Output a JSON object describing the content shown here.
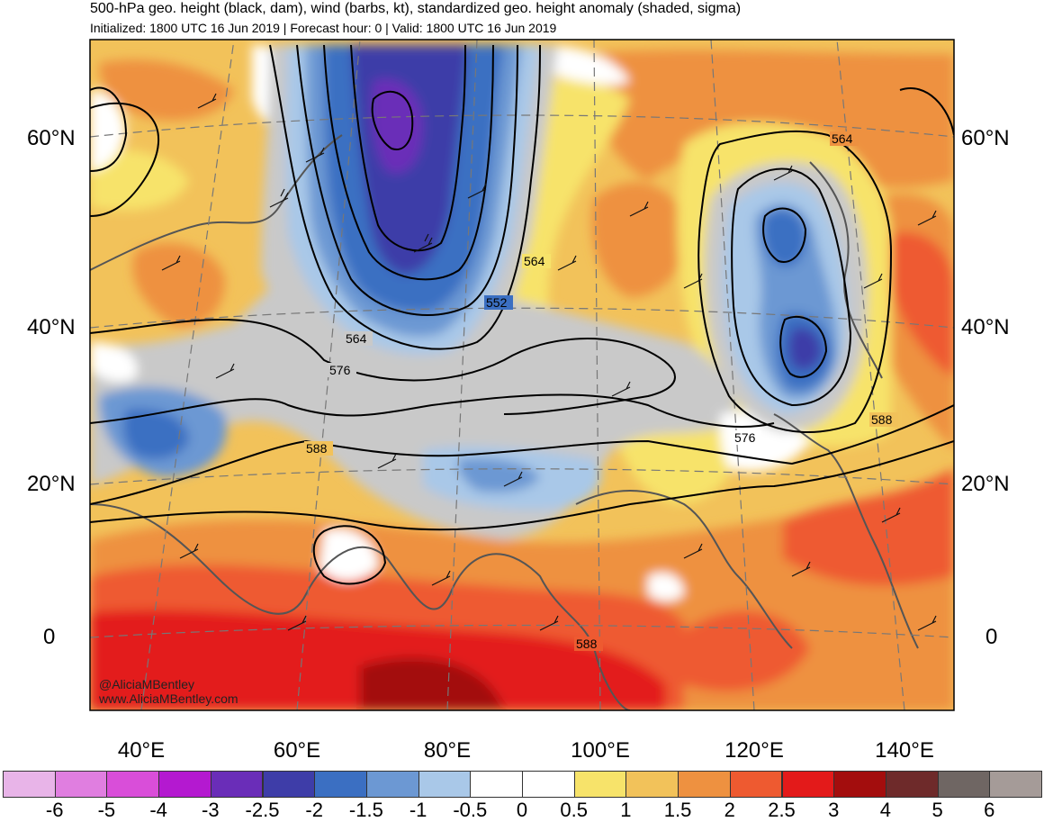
{
  "header": {
    "title": "500-hPa geo. height (black, dam), wind (barbs, kt), standardized geo. height anomaly (shaded, sigma)",
    "subtitle": "Initialized: 1800 UTC 16 Jun 2019 | Forecast hour: 0 | Valid: 1800 UTC 16 Jun 2019"
  },
  "map": {
    "lat_labels": [
      "60°N",
      "40°N",
      "20°N",
      "0"
    ],
    "lon_labels": [
      "40°E",
      "60°E",
      "80°E",
      "100°E",
      "120°E",
      "140°E"
    ],
    "contour_labels": [
      "564",
      "564",
      "552",
      "564",
      "576",
      "588",
      "576",
      "588",
      "588"
    ],
    "watermark": [
      "@AliciaMBentley",
      "www.AliciaMBentley.com"
    ]
  },
  "colorbar": {
    "labels": [
      "-6",
      "-5",
      "-4",
      "-3",
      "-2.5",
      "-2",
      "-1.5",
      "-1",
      "-0.5",
      "0",
      "0.5",
      "1",
      "1.5",
      "2",
      "2.5",
      "3",
      "4",
      "5",
      "6"
    ],
    "colors": [
      "#e8b4e8",
      "#e07ee0",
      "#d94ed9",
      "#b419d0",
      "#6a2db8",
      "#3e3da8",
      "#3b6fc2",
      "#6c98d3",
      "#a9c8e8",
      "#ffffff",
      "#ffffff",
      "#f7e36a",
      "#f2c25a",
      "#ee9140",
      "#ee5a30",
      "#e31a1a",
      "#a30d0d",
      "#6e2a2a",
      "#6f6663",
      "#a59b98"
    ]
  }
}
